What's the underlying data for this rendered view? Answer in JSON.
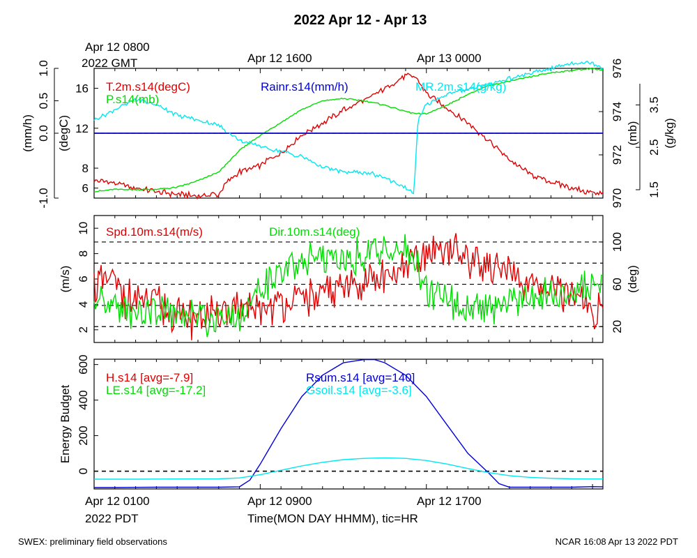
{
  "title": "2022 Apr 12 - Apr 13",
  "footer_left": "SWEX: preliminary field observations",
  "footer_right": "NCAR 16:08 Apr 13 2022 PDT",
  "top_axis": {
    "first_label_line1": "Apr 12 0800",
    "first_label_line2": "2022 GMT",
    "labels": [
      "Apr 12 1600",
      "Apr 13 0000"
    ]
  },
  "bottom_axis": {
    "first_label_line1": "Apr 12 0100",
    "first_label_line2": "2022 PDT",
    "labels": [
      "Apr 12 0900",
      "Apr 12 1700"
    ],
    "xlabel": "Time(MON DAY HHMM), tic=HR"
  },
  "colors": {
    "red": "#e00000",
    "green": "#00dd00",
    "blue": "#0000dd",
    "cyan": "#00e8f0",
    "black": "#000000"
  },
  "chart_data": [
    {
      "type": "line",
      "panel": "top",
      "x_unit": "hours since Apr 12 0100 PDT",
      "xlim": [
        0,
        24.5
      ],
      "axes": {
        "rain": {
          "label": "(mm/h)",
          "ylim": [
            -1.0,
            1.0
          ],
          "ticks": [
            "-1.0",
            "0.0",
            "0.5",
            "1.0"
          ]
        },
        "temp": {
          "label": "(degC)",
          "ylim": [
            5,
            18
          ],
          "ticks": [
            "6",
            "8",
            "12",
            "16"
          ]
        },
        "pres": {
          "label": "(mb)",
          "ylim": [
            970,
            976
          ],
          "ticks": [
            "970",
            "972",
            "974",
            "976"
          ]
        },
        "mr": {
          "label": "(g/kg)",
          "ylim": [
            1.5,
            4.0
          ],
          "ticks": [
            "1.5",
            "2.5",
            "3.5"
          ]
        }
      },
      "series": [
        {
          "name": "T.2m.s14(degC)",
          "color": "red",
          "axis": "temp",
          "x": [
            0,
            1,
            2,
            3,
            4,
            5,
            6,
            6.5,
            7,
            8,
            9,
            10,
            11,
            12,
            13,
            14,
            15,
            15.5,
            16,
            17,
            18,
            19,
            20,
            21,
            22,
            23,
            24,
            24.5
          ],
          "y": [
            6.8,
            6.5,
            6.0,
            5.6,
            5.4,
            5.2,
            5.4,
            6.8,
            7.6,
            8.3,
            9.5,
            11.3,
            12.5,
            13.8,
            14.8,
            16.0,
            17.2,
            17.2,
            15.5,
            14.0,
            12.5,
            10.8,
            8.8,
            7.4,
            6.6,
            6.0,
            5.5,
            5.6
          ]
        },
        {
          "name": "P.s14(mb)",
          "color": "green",
          "axis": "pres",
          "x": [
            0,
            1,
            2,
            3,
            4,
            5,
            6,
            7,
            8,
            9,
            10,
            11,
            12,
            13,
            14,
            15,
            15.5,
            16,
            17,
            18,
            19,
            20,
            21,
            22,
            23,
            24,
            24.5
          ],
          "y": [
            970.3,
            970.4,
            970.4,
            970.4,
            970.5,
            970.8,
            971.2,
            972.2,
            972.9,
            973.5,
            974.1,
            974.5,
            974.6,
            974.5,
            974.3,
            974.0,
            973.9,
            973.9,
            974.3,
            974.8,
            975.2,
            975.4,
            975.6,
            975.8,
            975.9,
            976.0,
            975.9
          ]
        },
        {
          "name": "Rainr.s14(mm/h)",
          "color": "blue",
          "axis": "rain",
          "x": [
            0,
            24.5
          ],
          "y": [
            0,
            0
          ]
        },
        {
          "name": "MR.2m.s14(g/kg)",
          "color": "cyan",
          "axis": "mr",
          "x": [
            0,
            1,
            2,
            3,
            4,
            5,
            6,
            7,
            8,
            9,
            10,
            11,
            12,
            13,
            14,
            15,
            15.4,
            15.6,
            16,
            17,
            18,
            19,
            20,
            21,
            22,
            23,
            24,
            24.5
          ],
          "y": [
            3.0,
            3.2,
            3.4,
            3.3,
            3.1,
            3.0,
            2.9,
            2.6,
            2.5,
            2.4,
            2.3,
            2.1,
            2.0,
            2.0,
            1.9,
            1.7,
            1.6,
            3.0,
            3.3,
            3.5,
            3.6,
            3.7,
            3.8,
            3.9,
            4.0,
            4.1,
            4.1,
            4.0
          ]
        }
      ]
    },
    {
      "type": "line",
      "panel": "middle",
      "x_unit": "hours since Apr 12 0100 PDT",
      "xlim": [
        0,
        24.5
      ],
      "axes": {
        "spd": {
          "label": "(m/s)",
          "ylim": [
            1,
            11
          ],
          "ticks": [
            "2",
            "4",
            "6",
            "8",
            "10"
          ]
        },
        "dir": {
          "label": "(deg)",
          "ylim": [
            5,
            125
          ],
          "ticks": [
            "20",
            "60",
            "100"
          ]
        }
      },
      "reference_lines_deg": [
        20,
        40,
        60,
        80,
        100
      ],
      "series": [
        {
          "name": "Spd.10m.s14(m/s)",
          "color": "red",
          "axis": "spd",
          "x": [
            0,
            1,
            1.5,
            2,
            3,
            4,
            5,
            6,
            7,
            8,
            9,
            10,
            11,
            12,
            13,
            14,
            15,
            16,
            17,
            18,
            19,
            20,
            21,
            22,
            23,
            24,
            24.5
          ],
          "y": [
            5.5,
            6.0,
            4.5,
            4.2,
            4.0,
            3.2,
            2.8,
            3.3,
            3.5,
            3.6,
            3.9,
            4.3,
            4.9,
            5.3,
            5.7,
            6.2,
            6.7,
            7.8,
            8.5,
            7.6,
            7.2,
            6.1,
            5.2,
            5.2,
            4.7,
            3.5,
            3.8
          ]
        },
        {
          "name": "Dir.10m.s14(deg)",
          "color": "green",
          "axis": "dir",
          "x": [
            0,
            1,
            2,
            3,
            4,
            5,
            6,
            7,
            8,
            9,
            10,
            11,
            12,
            13,
            14,
            15,
            15.5,
            16,
            17,
            18,
            19,
            20,
            21,
            22,
            23,
            24,
            24.5
          ],
          "y": [
            40,
            38,
            36,
            35,
            30,
            28,
            30,
            32,
            55,
            70,
            80,
            85,
            85,
            90,
            95,
            90,
            80,
            55,
            45,
            35,
            40,
            45,
            50,
            50,
            55,
            55,
            60
          ]
        }
      ]
    },
    {
      "type": "line",
      "panel": "bottom",
      "x_unit": "hours since Apr 12 0100 PDT",
      "xlim": [
        0,
        24.5
      ],
      "ylabel": "Energy Budget",
      "ylim": [
        -100,
        630
      ],
      "yticks": [
        "0",
        "200",
        "400",
        "600"
      ],
      "reference_lines": [
        0
      ],
      "series": [
        {
          "name": "H.s14 [avg=-7.9]",
          "color": "red",
          "values": []
        },
        {
          "name": "LE.s14 [avg=-17.2]",
          "color": "green",
          "values": []
        },
        {
          "name": "Rsum.s14 [avg=140]",
          "color": "blue",
          "x": [
            0,
            1,
            2,
            3,
            4,
            5,
            6,
            7,
            7.5,
            8,
            9,
            10,
            11,
            12,
            13,
            13.5,
            14,
            15,
            16,
            17,
            18,
            19,
            19.5,
            20,
            21,
            22,
            23,
            24,
            24.5
          ],
          "y": [
            -92,
            -92,
            -91,
            -90,
            -90,
            -90,
            -90,
            -88,
            -50,
            40,
            240,
            420,
            540,
            610,
            628,
            628,
            610,
            540,
            420,
            260,
            100,
            -10,
            -70,
            -90,
            -90,
            -90,
            -90,
            -87,
            -88
          ]
        },
        {
          "name": "Gsoil.s14 [avg=-3.6]",
          "color": "cyan",
          "x": [
            0,
            2,
            4,
            6,
            7,
            8,
            9,
            10,
            11,
            12,
            13,
            14,
            15,
            16,
            17,
            18,
            19,
            20,
            21,
            22,
            23,
            24,
            24.5
          ],
          "y": [
            -45,
            -45,
            -44,
            -43,
            -38,
            -20,
            5,
            30,
            50,
            65,
            72,
            75,
            72,
            60,
            40,
            15,
            -8,
            -25,
            -35,
            -40,
            -43,
            -44,
            -44
          ]
        }
      ]
    }
  ]
}
